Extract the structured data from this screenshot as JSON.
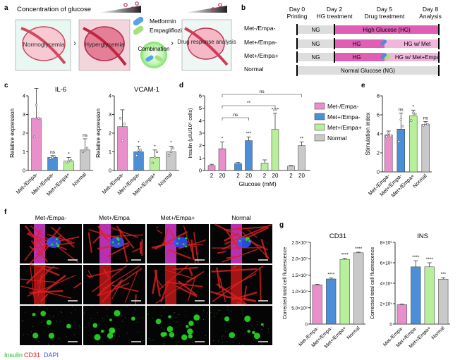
{
  "colors": {
    "pink": "#e98fcb",
    "blue": "#4a8fd8",
    "green": "#b8ef9a",
    "gray": "#c9c9c9",
    "hg_band": "#e05fb5",
    "ng_band": "#dddddd",
    "red_channel": "#e02020",
    "green_channel": "#22dd22",
    "dapi": "#3355ff"
  },
  "panel_a": {
    "letter": "a",
    "title": "Concentration of glucose",
    "labels": [
      "Normoglycemia",
      "Hyperglycemia",
      "Drug response analysis"
    ],
    "legend": [
      "Metformin",
      "Empagliflozin",
      "Combination"
    ],
    "icons": [
      "metformin-capsule-icon",
      "empagliflozin-capsule-icon",
      "combination-icon"
    ]
  },
  "panel_b": {
    "letter": "b",
    "days": [
      {
        "title": "Day 0",
        "sub": "Printing"
      },
      {
        "title": "Day 2",
        "sub": "HG treatment"
      },
      {
        "title": "Day 5",
        "sub": "Drug treatment"
      },
      {
        "title": "Day 8",
        "sub": "Analysis"
      }
    ],
    "rows": [
      {
        "label": "Met-/Empa-",
        "ng": "NG",
        "hg": "High Glucose (HG)",
        "drug": ""
      },
      {
        "label": "Met+/Empa-",
        "ng": "NG",
        "hg": "HG",
        "drug": "HG w/ Met"
      },
      {
        "label": "Met+/Empa+",
        "ng": "NG",
        "hg": "HG",
        "drug": "HG w/ Met+Empa"
      },
      {
        "label": "Normal",
        "ng": "",
        "hg": "Normal Glucose (NG)",
        "drug": ""
      }
    ]
  },
  "chart_data": [
    {
      "panel": "c",
      "type": "bar",
      "title": "IL-6",
      "ylabel": "Relative expression",
      "ylim": [
        0,
        4
      ],
      "yticks": [
        0,
        1,
        2,
        3,
        4
      ],
      "categories": [
        "Met-/Empa-",
        "Met+/Empa-",
        "Met+/Empa+",
        "Normal"
      ],
      "values": [
        2.8,
        0.7,
        0.5,
        1.1
      ],
      "errors": [
        1.6,
        0.1,
        0.2,
        0.6
      ],
      "points": [
        [
          1.8,
          3.5,
          2.8
        ],
        [
          0.65,
          0.7,
          0.75
        ],
        [
          0.45,
          0.5,
          0.55
        ],
        [
          1.0,
          1.1,
          1.2
        ]
      ],
      "sig": [
        "",
        "ns",
        "*",
        "ns"
      ]
    },
    {
      "panel": "c",
      "type": "bar",
      "title": "VCAM-1",
      "ylabel": "Relative expression",
      "ylim": [
        0,
        4
      ],
      "yticks": [
        0,
        1,
        2,
        3,
        4
      ],
      "categories": [
        "Met-/Empa-",
        "Met+/Empa-",
        "Met+/Empa+",
        "Normal"
      ],
      "values": [
        2.35,
        1.0,
        0.7,
        1.0
      ],
      "errors": [
        0.9,
        0.3,
        0.4,
        0.3
      ],
      "points": [
        [
          2.8,
          1.6,
          2.5
        ],
        [
          0.8,
          1.1,
          1.1
        ],
        [
          0.4,
          0.7,
          1.0
        ],
        [
          0.8,
          1.0,
          1.2
        ]
      ],
      "sig": [
        "",
        "*",
        "*",
        "*"
      ]
    },
    {
      "panel": "d",
      "type": "bar",
      "ylabel": "Insulin (µIU/10⁵ cells)",
      "xlabel": "Glucose (mM)",
      "ylim": [
        0,
        6
      ],
      "yticks": [
        0,
        1,
        2,
        3,
        4,
        5,
        6
      ],
      "ticks": [
        "2",
        "20",
        "2",
        "20",
        "2",
        "20",
        "2",
        "20"
      ],
      "groups": [
        "Met-/Empa-",
        "Met+/Empa-",
        "Met+/Empa+",
        "Normal"
      ],
      "values": [
        0.4,
        1.75,
        0.55,
        2.4,
        0.6,
        3.3,
        0.35,
        2.0
      ],
      "errors": [
        0.1,
        0.55,
        0.1,
        0.3,
        0.25,
        1.3,
        0.05,
        0.3
      ],
      "sig": [
        "",
        "*",
        "",
        "***",
        "",
        "*/#*",
        "",
        "**"
      ],
      "brackets": [
        {
          "from": 1,
          "to": 7,
          "label": "ns"
        },
        {
          "from": 1,
          "to": 5,
          "label": "**"
        },
        {
          "from": 1,
          "to": 3,
          "label": "ns"
        }
      ],
      "legend": [
        "Met-/Empa-",
        "Met+/Empa-",
        "Met+/Empa+",
        "Normal"
      ]
    },
    {
      "panel": "e",
      "type": "bar",
      "ylabel": "Stimulation index",
      "ylim": [
        0,
        8
      ],
      "yticks": [
        0,
        2,
        4,
        6,
        8
      ],
      "categories": [
        "Met-/Empa-",
        "Met+/Empa-",
        "Met+/Empa+",
        "Normal"
      ],
      "values": [
        3.9,
        4.5,
        5.9,
        5.0
      ],
      "errors": [
        0.4,
        1.7,
        0.6,
        0.3
      ],
      "points": [
        [
          3.7,
          4.1,
          3.8
        ],
        [
          3.2,
          5.5,
          4.8
        ],
        [
          5.4,
          6.2,
          6.1
        ],
        [
          4.9,
          5.1,
          5.0
        ]
      ],
      "sig": [
        "",
        "ns",
        "*",
        "ns"
      ]
    },
    {
      "panel": "g",
      "type": "bar",
      "title": "CD31",
      "ylabel": "Corrected total cell fluorescence",
      "ylim": [
        0,
        25000000
      ],
      "yticks": [
        "0",
        "5.0×10⁶",
        "1.0×10⁷",
        "1.5×10⁷",
        "2.0×10⁷",
        "2.5×10⁷"
      ],
      "categories": [
        "Met-/Empa-",
        "Met+/Empa-",
        "Met+/Empa+",
        "Normal"
      ],
      "values": [
        12000000,
        13800000,
        19800000,
        21800000
      ],
      "errors": [
        200000,
        300000,
        300000,
        200000
      ],
      "sig": [
        "",
        "****",
        "****",
        "****"
      ]
    },
    {
      "panel": "g",
      "type": "bar",
      "title": "INS",
      "ylabel": "Corrected total cell fluorescence",
      "ylim": [
        0,
        800000
      ],
      "yticks": [
        "0",
        "2×10⁵",
        "4×10⁵",
        "6×10⁵",
        "8×10⁵"
      ],
      "categories": [
        "Met-/Empa-",
        "Met+/Empa-",
        "Met+/Empa+",
        "Normal"
      ],
      "values": [
        190000,
        560000,
        560000,
        440000
      ],
      "errors": [
        5000,
        60000,
        40000,
        15000
      ],
      "sig": [
        "",
        "****",
        "****",
        "***"
      ]
    }
  ],
  "panel_f": {
    "letter": "f",
    "columns": [
      "Met-/Empa-",
      "Met+/Empa",
      "Met+/Empa+",
      "Normal"
    ],
    "legend": [
      "Insulin",
      "CD31",
      "DAPI"
    ]
  },
  "panel_letters": {
    "c": "c",
    "d": "d",
    "e": "e",
    "g": "g"
  }
}
